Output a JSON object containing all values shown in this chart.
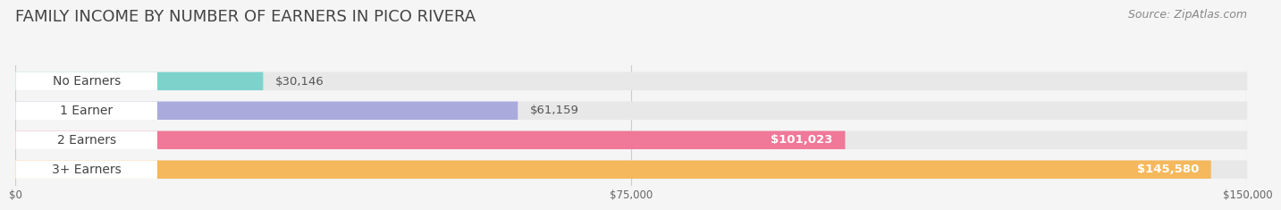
{
  "title": "FAMILY INCOME BY NUMBER OF EARNERS IN PICO RIVERA",
  "source": "Source: ZipAtlas.com",
  "categories": [
    "No Earners",
    "1 Earner",
    "2 Earners",
    "3+ Earners"
  ],
  "values": [
    30146,
    61159,
    101023,
    145580
  ],
  "bar_colors": [
    "#7dd3cc",
    "#aaaadd",
    "#f07898",
    "#f5b85c"
  ],
  "max_value": 150000,
  "x_ticks": [
    0,
    75000,
    150000
  ],
  "x_tick_labels": [
    "$0",
    "$75,000",
    "$150,000"
  ],
  "background_color": "#f5f5f5",
  "bar_bg_color": "#e8e8e8",
  "title_fontsize": 13,
  "source_fontsize": 9,
  "label_fontsize": 10,
  "value_fontsize": 9.5
}
